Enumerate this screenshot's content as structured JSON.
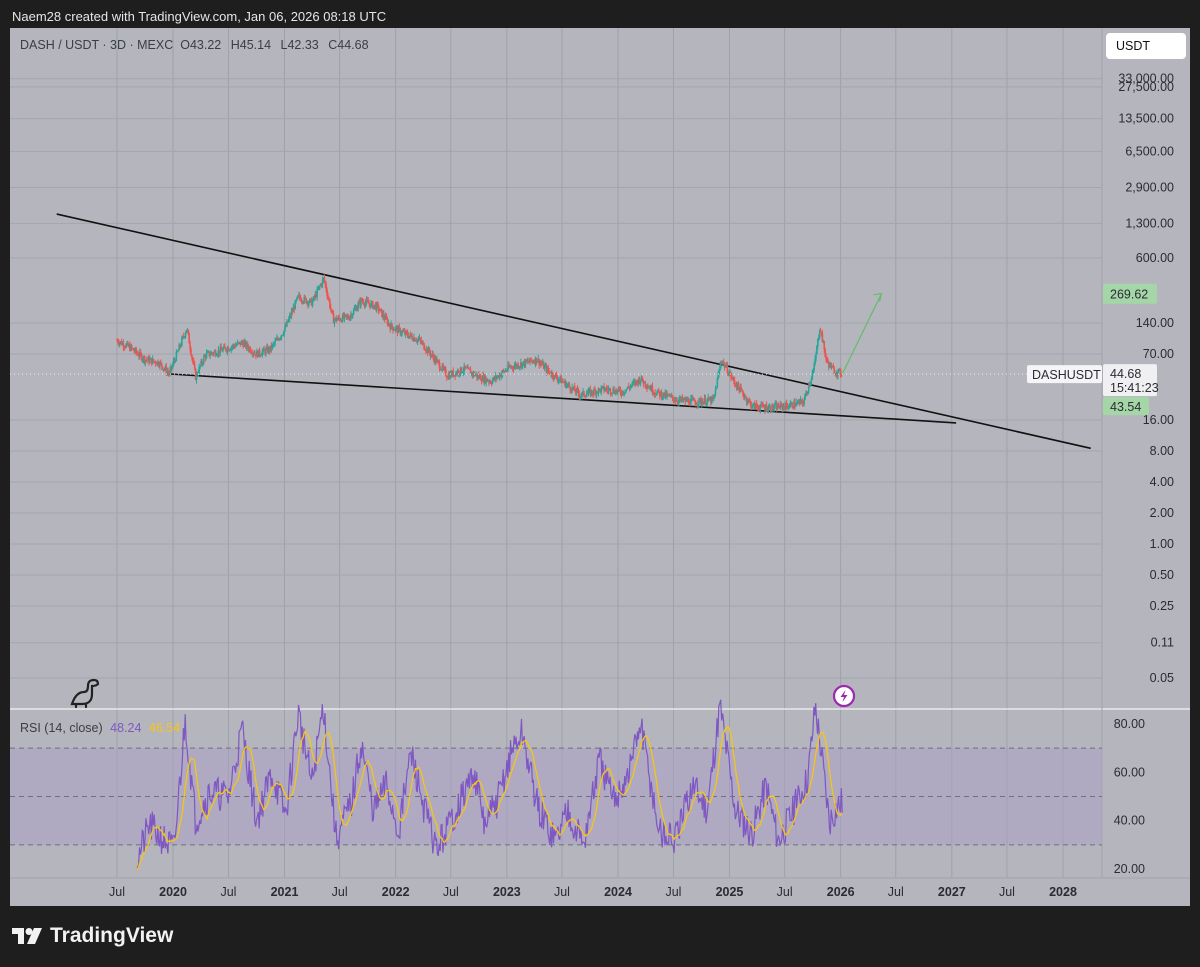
{
  "header": {
    "credit": "Naem28 created with TradingView.com, Jan 06, 2026 08:18 UTC"
  },
  "symbol_legend": {
    "pair": "DASH / USDT · 3D · MEXC",
    "o_label": "O",
    "o": "43.22",
    "h_label": "H",
    "h": "45.14",
    "l_label": "L",
    "l": "42.33",
    "c_label": "C",
    "c": "44.68"
  },
  "currency_button": "USDT",
  "rsi_legend": {
    "label": "RSI (14, close)",
    "rsi": "48.24",
    "ma": "46.54"
  },
  "brand": "TradingView",
  "price_badges": {
    "target": "269.62",
    "symbol": "DASHUSDT",
    "last": "44.68",
    "countdown": "15:41:23",
    "low": "43.54"
  },
  "colors": {
    "background": "#1e1e1e",
    "panel": "#b5b6bd",
    "candle_up": "#26a69a",
    "candle_down": "#ef5350",
    "rsi_line": "#7e57c2",
    "rsi_ma": "#f5c518",
    "target_arrow": "#66bb6a",
    "trendline": "#000000"
  },
  "chart_data": [
    {
      "type": "candlestick",
      "title": "DASH / USDT · 3D · MEXC",
      "y_scale": "log",
      "y_ticks": [
        "33,000.00",
        "27,500.00",
        "13,500.00",
        "6,500.00",
        "2,900.00",
        "1,300.00",
        "600.00",
        "140.00",
        "70.00",
        "16.00",
        "8.00",
        "4.00",
        "2.00",
        "1.00",
        "0.50",
        "0.25",
        "0.11",
        "0.05"
      ],
      "x_ticks": [
        "Jul",
        "2020",
        "Jul",
        "2021",
        "Jul",
        "2022",
        "Jul",
        "2023",
        "Jul",
        "2024",
        "Jul",
        "2025",
        "Jul",
        "2026",
        "Jul",
        "2027",
        "Jul",
        "2028"
      ],
      "x_tick_dates": [
        "2019-07",
        "2020-01",
        "2020-07",
        "2021-01",
        "2021-07",
        "2022-01",
        "2022-07",
        "2023-01",
        "2023-07",
        "2024-01",
        "2024-07",
        "2025-01",
        "2025-07",
        "2026-01",
        "2026-07",
        "2027-01",
        "2027-07",
        "2028-01"
      ],
      "price_path": [
        [
          "2019-07-01",
          95
        ],
        [
          "2019-08-15",
          80
        ],
        [
          "2019-10-01",
          62
        ],
        [
          "2019-11-15",
          58
        ],
        [
          "2019-12-20",
          45
        ],
        [
          "2020-02-15",
          125
        ],
        [
          "2020-03-15",
          42
        ],
        [
          "2020-04-15",
          68
        ],
        [
          "2020-06-01",
          75
        ],
        [
          "2020-08-15",
          90
        ],
        [
          "2020-10-01",
          70
        ],
        [
          "2020-11-15",
          78
        ],
        [
          "2021-01-01",
          120
        ],
        [
          "2021-02-15",
          250
        ],
        [
          "2021-04-01",
          220
        ],
        [
          "2021-05-10",
          380
        ],
        [
          "2021-06-10",
          150
        ],
        [
          "2021-08-01",
          160
        ],
        [
          "2021-09-10",
          230
        ],
        [
          "2021-11-01",
          200
        ],
        [
          "2021-12-15",
          130
        ],
        [
          "2022-02-01",
          110
        ],
        [
          "2022-03-20",
          95
        ],
        [
          "2022-05-10",
          62
        ],
        [
          "2022-06-20",
          43
        ],
        [
          "2022-08-15",
          50
        ],
        [
          "2022-10-01",
          42
        ],
        [
          "2022-11-10",
          38
        ],
        [
          "2023-01-10",
          52
        ],
        [
          "2023-04-10",
          62
        ],
        [
          "2023-05-15",
          48
        ],
        [
          "2023-07-01",
          38
        ],
        [
          "2023-09-01",
          28
        ],
        [
          "2023-11-15",
          32
        ],
        [
          "2024-01-15",
          30
        ],
        [
          "2024-03-15",
          40
        ],
        [
          "2024-05-01",
          30
        ],
        [
          "2024-07-15",
          25
        ],
        [
          "2024-09-15",
          24
        ],
        [
          "2024-11-10",
          25
        ],
        [
          "2024-12-05",
          62
        ],
        [
          "2025-01-15",
          38
        ],
        [
          "2025-03-15",
          22
        ],
        [
          "2025-05-15",
          21
        ],
        [
          "2025-07-15",
          22
        ],
        [
          "2025-09-01",
          24
        ],
        [
          "2025-10-05",
          50
        ],
        [
          "2025-10-25",
          130
        ],
        [
          "2025-11-15",
          60
        ],
        [
          "2025-12-10",
          48
        ],
        [
          "2026-01-06",
          44.68
        ]
      ],
      "last_close": 44.68,
      "target": 269.62,
      "upper_trendline": [
        [
          "2018-12-15",
          1600
        ],
        [
          "2028-04-01",
          8.5
        ]
      ],
      "lower_trendline": [
        [
          "2019-12-10",
          45
        ],
        [
          "2027-01-15",
          15
        ]
      ],
      "projection_arrow": [
        [
          "2026-01-06",
          44.68
        ],
        [
          "2026-05-15",
          269.62
        ]
      ]
    },
    {
      "type": "line",
      "title": "RSI (14, close)",
      "y_ticks": [
        "80.00",
        "60.00",
        "40.00",
        "20.00"
      ],
      "bands": [
        70,
        50,
        30
      ],
      "series": [
        {
          "name": "RSI",
          "last": 48.24
        },
        {
          "name": "RSI MA",
          "last": 46.54
        }
      ],
      "rsi_path": [
        [
          "2019-09-01",
          22
        ],
        [
          "2019-10-15",
          38
        ],
        [
          "2019-12-01",
          32
        ],
        [
          "2020-01-05",
          28
        ],
        [
          "2020-02-10",
          82
        ],
        [
          "2020-03-15",
          40
        ],
        [
          "2020-05-01",
          52
        ],
        [
          "2020-07-01",
          50
        ],
        [
          "2020-08-15",
          78
        ],
        [
          "2020-10-01",
          40
        ],
        [
          "2020-11-20",
          60
        ],
        [
          "2021-01-05",
          42
        ],
        [
          "2021-02-15",
          85
        ],
        [
          "2021-04-01",
          55
        ],
        [
          "2021-05-08",
          88
        ],
        [
          "2021-06-20",
          32
        ],
        [
          "2021-08-10",
          48
        ],
        [
          "2021-09-10",
          72
        ],
        [
          "2021-10-20",
          44
        ],
        [
          "2021-12-01",
          55
        ],
        [
          "2022-01-10",
          35
        ],
        [
          "2022-02-20",
          68
        ],
        [
          "2022-04-05",
          45
        ],
        [
          "2022-05-15",
          28
        ],
        [
          "2022-07-10",
          42
        ],
        [
          "2022-09-15",
          60
        ],
        [
          "2022-10-20",
          38
        ],
        [
          "2022-12-01",
          48
        ],
        [
          "2023-01-20",
          70
        ],
        [
          "2023-02-20",
          76
        ],
        [
          "2023-04-15",
          44
        ],
        [
          "2023-06-10",
          32
        ],
        [
          "2023-07-20",
          45
        ],
        [
          "2023-09-10",
          30
        ],
        [
          "2023-11-01",
          65
        ],
        [
          "2023-12-15",
          48
        ],
        [
          "2024-02-01",
          58
        ],
        [
          "2024-03-15",
          80
        ],
        [
          "2024-05-15",
          35
        ],
        [
          "2024-07-10",
          32
        ],
        [
          "2024-09-01",
          55
        ],
        [
          "2024-10-20",
          45
        ],
        [
          "2024-12-01",
          88
        ],
        [
          "2025-01-20",
          45
        ],
        [
          "2025-03-15",
          35
        ],
        [
          "2025-05-01",
          55
        ],
        [
          "2025-06-10",
          32
        ],
        [
          "2025-08-01",
          45
        ],
        [
          "2025-09-15",
          58
        ],
        [
          "2025-10-10",
          88
        ],
        [
          "2025-10-28",
          70
        ],
        [
          "2025-11-25",
          40
        ],
        [
          "2025-12-20",
          46
        ],
        [
          "2026-01-06",
          48.24
        ]
      ]
    }
  ]
}
